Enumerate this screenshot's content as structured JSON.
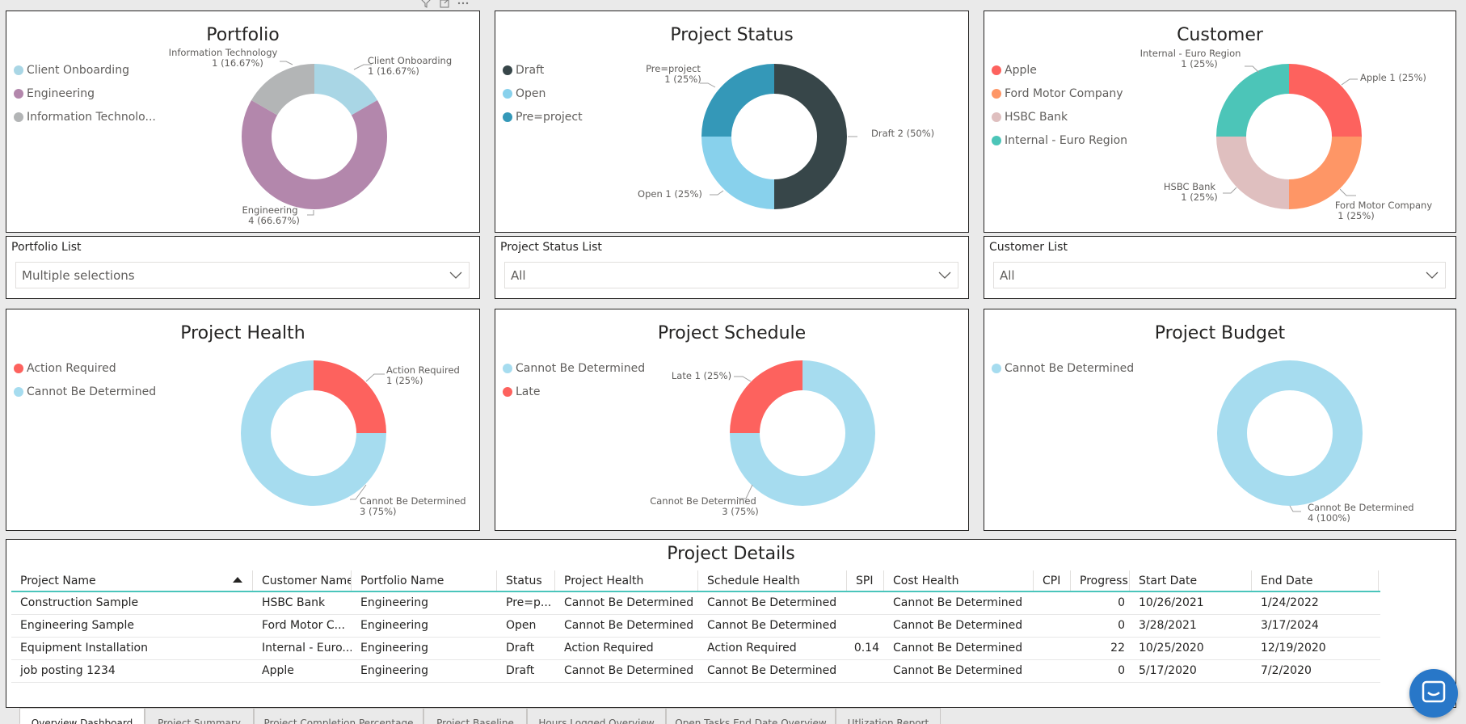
{
  "colors": {
    "client_onboarding": "#a9d6e5",
    "engineering": "#b387ac",
    "info_tech": "#b3b5b6",
    "draft": "#374649",
    "open": "#88d1ec",
    "pre_project": "#3498b8",
    "apple": "#fd625e",
    "ford": "#fe9666",
    "hsbc": "#dfbfbf",
    "internal": "#4cc5b8",
    "action_required": "#fd625e",
    "cannot_be_determined": "#a6dcef",
    "late": "#fd625e",
    "accent_line": "#4ac5bb",
    "chat_button": "#2877c8"
  },
  "icons": [
    "filter-icon",
    "focus-mode-icon",
    "more-options-icon",
    "chevron-down-icon",
    "chat-icon"
  ],
  "portfolio": {
    "title": "Portfolio",
    "legend": [
      "Client Onboarding",
      "Engineering",
      "Information Technolo..."
    ],
    "labels": {
      "client_onboarding": [
        "Client Onboarding",
        "1 (16.67%)"
      ],
      "engineering": [
        "Engineering",
        "4 (66.67%)"
      ],
      "info_tech": [
        "Information Technology",
        "1 (16.67%)"
      ]
    }
  },
  "project_status": {
    "title": "Project Status",
    "legend": [
      "Draft",
      "Open",
      "Pre=project"
    ],
    "labels": {
      "draft": [
        "Draft 2 (50%)"
      ],
      "open": [
        "Open 1 (25%)"
      ],
      "pre_project": [
        "Pre=project",
        "1 (25%)"
      ]
    }
  },
  "customer": {
    "title": "Customer",
    "legend": [
      "Apple",
      "Ford Motor Company",
      "HSBC Bank",
      "Internal - Euro Region"
    ],
    "labels": {
      "apple": [
        "Apple 1 (25%)"
      ],
      "ford": [
        "Ford Motor Company",
        "1 (25%)"
      ],
      "hsbc": [
        "HSBC Bank",
        "1 (25%)"
      ],
      "internal": [
        "Internal - Euro Region",
        "1 (25%)"
      ]
    }
  },
  "slicers": {
    "portfolio": {
      "label": "Portfolio List",
      "value": "Multiple selections"
    },
    "status": {
      "label": "Project Status List",
      "value": "All"
    },
    "customer": {
      "label": "Customer List",
      "value": "All"
    }
  },
  "health": {
    "title": "Project Health",
    "legend": [
      "Action Required",
      "Cannot Be Determined"
    ],
    "labels": {
      "action_required": [
        "Action Required",
        "1 (25%)"
      ],
      "cannot_be_determined": [
        "Cannot Be Determined",
        "3 (75%)"
      ]
    }
  },
  "schedule": {
    "title": "Project Schedule",
    "legend": [
      "Cannot Be Determined",
      "Late"
    ],
    "labels": {
      "late": [
        "Late 1 (25%)"
      ],
      "cannot_be_determined": [
        "Cannot Be Determined",
        "3 (75%)"
      ]
    }
  },
  "budget": {
    "title": "Project Budget",
    "legend": [
      "Cannot Be Determined"
    ],
    "labels": {
      "cannot_be_determined": [
        "Cannot Be Determined",
        "4 (100%)"
      ]
    }
  },
  "details": {
    "title": "Project Details",
    "columns": [
      "Project Name",
      "Customer Name",
      "Portfolio Name",
      "Status",
      "Project Health",
      "Schedule Health",
      "SPI",
      "Cost Health",
      "CPI",
      "Progress",
      "Start Date",
      "End Date"
    ],
    "rows": [
      [
        "Construction Sample",
        "HSBC Bank",
        "Engineering",
        "Pre=p...",
        "Cannot Be Determined",
        "Cannot Be Determined",
        "",
        "Cannot Be Determined",
        "",
        "0",
        "10/26/2021",
        "1/24/2022"
      ],
      [
        "Engineering Sample",
        "Ford Motor C...",
        "Engineering",
        "Open",
        "Cannot Be Determined",
        "Cannot Be Determined",
        "",
        "Cannot Be Determined",
        "",
        "0",
        "3/28/2021",
        "3/17/2024"
      ],
      [
        "Equipment Installation",
        "Internal - Euro...",
        "Engineering",
        "Draft",
        "Action Required",
        "Action Required",
        "0.14",
        "Cannot Be Determined",
        "",
        "22",
        "10/25/2020",
        "12/19/2020"
      ],
      [
        "job posting 1234",
        "Apple",
        "Engineering",
        "Draft",
        "Cannot Be Determined",
        "Cannot Be Determined",
        "",
        "Cannot Be Determined",
        "",
        "0",
        "5/17/2020",
        "7/2/2020"
      ]
    ]
  },
  "tabs": [
    "Overview Dashboard",
    "Project Summary",
    "Project Completion Percentage",
    "Project Baseline",
    "Hours Logged Overview",
    "Open Tasks End Date Overview",
    "Utlization Report"
  ],
  "chart_data": [
    {
      "type": "pie",
      "title": "Portfolio",
      "categories": [
        "Client Onboarding",
        "Engineering",
        "Information Technology"
      ],
      "values": [
        1,
        4,
        1
      ],
      "percent": [
        16.67,
        66.67,
        16.67
      ],
      "legend_position": "top-left"
    },
    {
      "type": "pie",
      "title": "Project Status",
      "categories": [
        "Draft",
        "Open",
        "Pre=project"
      ],
      "values": [
        2,
        1,
        1
      ],
      "percent": [
        50,
        25,
        25
      ],
      "legend_position": "top-left"
    },
    {
      "type": "pie",
      "title": "Customer",
      "categories": [
        "Apple",
        "Ford Motor Company",
        "HSBC Bank",
        "Internal - Euro Region"
      ],
      "values": [
        1,
        1,
        1,
        1
      ],
      "percent": [
        25,
        25,
        25,
        25
      ],
      "legend_position": "top-left"
    },
    {
      "type": "pie",
      "title": "Project Health",
      "categories": [
        "Action Required",
        "Cannot Be Determined"
      ],
      "values": [
        1,
        3
      ],
      "percent": [
        25,
        75
      ],
      "legend_position": "top-left"
    },
    {
      "type": "pie",
      "title": "Project Schedule",
      "categories": [
        "Late",
        "Cannot Be Determined"
      ],
      "values": [
        1,
        3
      ],
      "percent": [
        25,
        75
      ],
      "legend_position": "top-left"
    },
    {
      "type": "pie",
      "title": "Project Budget",
      "categories": [
        "Cannot Be Determined"
      ],
      "values": [
        4
      ],
      "percent": [
        100
      ],
      "legend_position": "top-left"
    }
  ]
}
